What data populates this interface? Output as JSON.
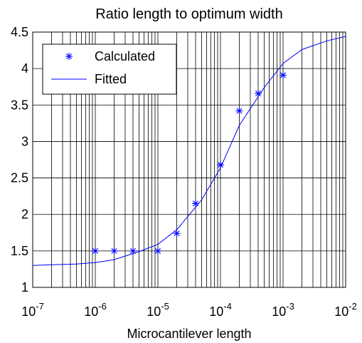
{
  "chart_data": {
    "type": "line",
    "title": "Ratio length to optimum width",
    "xlabel": "Microcantilever length",
    "ylabel": "",
    "x_scale": "log",
    "xlim": [
      1e-07,
      0.01
    ],
    "ylim": [
      1,
      4.5
    ],
    "grid": true,
    "legend_position": "top-left",
    "x_tick_labels": [
      {
        "base": "10",
        "exp": "-7"
      },
      {
        "base": "10",
        "exp": "-6"
      },
      {
        "base": "10",
        "exp": "-5"
      },
      {
        "base": "10",
        "exp": "-4"
      },
      {
        "base": "10",
        "exp": "-3"
      },
      {
        "base": "10",
        "exp": "-2"
      }
    ],
    "y_ticks": [
      1,
      1.5,
      2,
      2.5,
      3,
      3.5,
      4,
      4.5
    ],
    "y_tick_labels": [
      "1",
      "1.5",
      "2",
      "2.5",
      "3",
      "3.5",
      "4",
      "4.5"
    ],
    "series": [
      {
        "name": "Calculated",
        "style": "markers",
        "marker": "asterisk",
        "color": "#0000ff",
        "x": [
          1e-06,
          2e-06,
          4e-06,
          1e-05,
          2e-05,
          4e-05,
          0.0001,
          0.0002,
          0.0004,
          0.001
        ],
        "y": [
          1.5,
          1.5,
          1.5,
          1.5,
          1.74,
          2.15,
          2.68,
          3.42,
          3.66,
          3.91
        ]
      },
      {
        "name": "Fitted",
        "style": "line",
        "color": "#0000ff",
        "x": [
          1e-07,
          2e-07,
          5e-07,
          1e-06,
          2e-06,
          5e-06,
          1e-05,
          2e-05,
          5e-05,
          0.0001,
          0.0002,
          0.0005,
          0.001,
          0.002,
          0.005,
          0.01
        ],
        "y": [
          1.3,
          1.31,
          1.32,
          1.34,
          1.38,
          1.49,
          1.59,
          1.79,
          2.2,
          2.64,
          3.22,
          3.74,
          4.07,
          4.26,
          4.38,
          4.44
        ]
      }
    ]
  }
}
